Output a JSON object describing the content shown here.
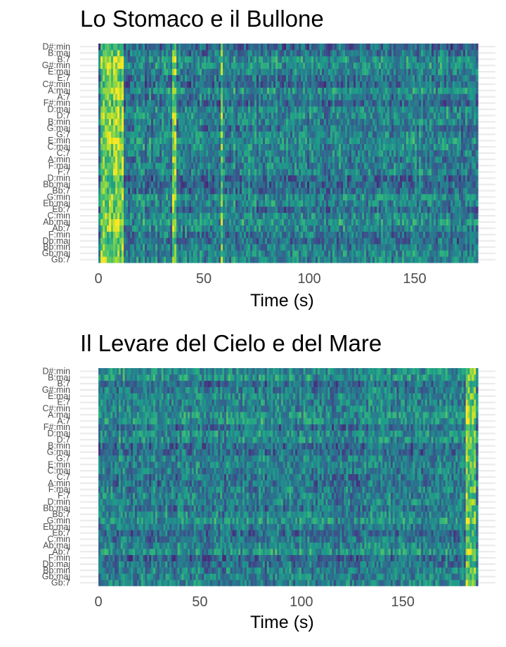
{
  "chart_data": [
    {
      "type": "heatmap",
      "title": "Lo Stomaco e il Bullone",
      "xlabel": "Time (s)",
      "ylabel": "",
      "xlim": [
        0,
        180
      ],
      "x_ticks": [
        0,
        50,
        100,
        150
      ],
      "y_tick_labels": [
        "Gb:7",
        "Gb:maj",
        "Bb:min",
        "Db:maj",
        "F:min",
        "Ab:7",
        "Ab:maj",
        "C:min",
        "Eb:7",
        "Eb:maj",
        "G:min",
        "Bb:7",
        "Bb:maj",
        "D:min",
        "F:7",
        "F:maj",
        "A:min",
        "C:7",
        "C:maj",
        "E:min",
        "G:7",
        "G:maj",
        "B:min",
        "D:7",
        "D:maj",
        "F#:min",
        "A:7",
        "A:maj",
        "C#:min",
        "E:7",
        "E:maj",
        "G#:min",
        "B:7",
        "B:maj",
        "D#:min"
      ],
      "color_scale": "viridis",
      "bright_bands_s": [
        [
          1,
          12
        ],
        [
          35,
          37
        ],
        [
          58,
          59
        ]
      ]
    },
    {
      "type": "heatmap",
      "title": "Il Levare del Cielo e del Mare",
      "xlabel": "Time (s)",
      "ylabel": "",
      "xlim": [
        0,
        187
      ],
      "x_ticks": [
        0,
        50,
        100,
        150
      ],
      "y_tick_labels": [
        "Gb:7",
        "Gb:maj",
        "Bb:min",
        "Db:maj",
        "F:min",
        "Ab:7",
        "Ab:maj",
        "C:min",
        "Eb:7",
        "Eb:maj",
        "G:min",
        "Bb:7",
        "Bb:maj",
        "D:min",
        "F:7",
        "F:maj",
        "A:min",
        "C:7",
        "C:maj",
        "E:min",
        "G:7",
        "G:maj",
        "B:min",
        "D:7",
        "D:maj",
        "F#:min",
        "A:7",
        "A:maj",
        "C#:min",
        "E:7",
        "E:maj",
        "G#:min",
        "B:7",
        "B:maj",
        "D#:min"
      ],
      "color_scale": "viridis",
      "bright_bands_s": [
        [
          181,
          186
        ]
      ]
    }
  ]
}
